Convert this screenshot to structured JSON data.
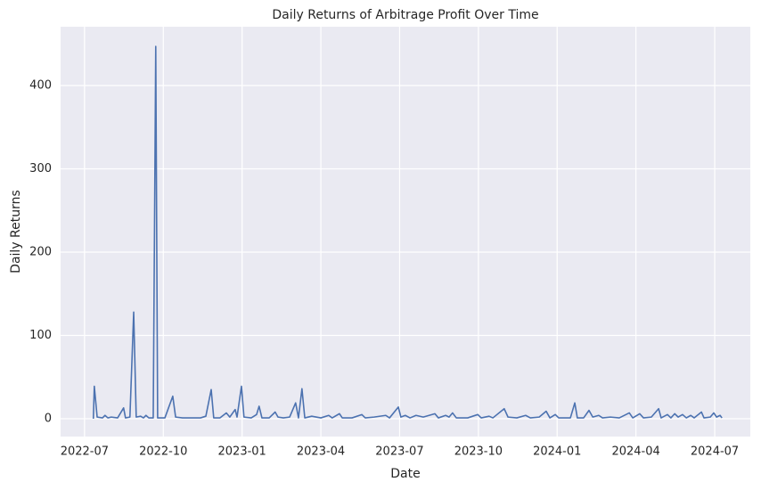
{
  "chart_data": {
    "type": "line",
    "title": "Daily Returns of Arbitrage Profit Over Time",
    "xlabel": "Date",
    "ylabel": "Daily Returns",
    "x": [
      2022.528,
      2022.531,
      2022.54,
      2022.557,
      2022.565,
      2022.574,
      2022.585,
      2022.605,
      2022.624,
      2022.63,
      2022.644,
      2022.656,
      2022.664,
      2022.678,
      2022.687,
      2022.695,
      2022.704,
      2022.718,
      2022.726,
      2022.732,
      2022.755,
      2022.78,
      2022.789,
      2022.811,
      2022.839,
      2022.868,
      2022.885,
      2022.902,
      2022.91,
      2022.93,
      2022.95,
      2022.961,
      2022.978,
      2022.984,
      2022.998,
      2023.006,
      2023.029,
      2023.046,
      2023.054,
      2023.063,
      2023.086,
      2023.105,
      2023.114,
      2023.131,
      2023.151,
      2023.17,
      2023.179,
      2023.19,
      2023.199,
      2023.221,
      2023.25,
      2023.275,
      2023.286,
      2023.309,
      2023.318,
      2023.349,
      2023.38,
      2023.391,
      2023.419,
      2023.456,
      2023.468,
      2023.496,
      2023.504,
      2023.518,
      2023.533,
      2023.552,
      2023.575,
      2023.612,
      2023.623,
      2023.646,
      2023.657,
      2023.668,
      2023.68,
      2023.716,
      2023.748,
      2023.759,
      2023.784,
      2023.796,
      2023.832,
      2023.844,
      2023.872,
      2023.9,
      2023.915,
      2023.943,
      2023.965,
      2023.977,
      2023.994,
      2024.005,
      2024.042,
      2024.056,
      2024.064,
      2024.084,
      2024.101,
      2024.113,
      2024.132,
      2024.144,
      2024.169,
      2024.197,
      2024.229,
      2024.24,
      2024.262,
      2024.274,
      2024.299,
      2024.322,
      2024.33,
      2024.35,
      2024.361,
      2024.373,
      2024.384,
      2024.398,
      2024.41,
      2024.424,
      2024.435,
      2024.458,
      2024.466,
      2024.486,
      2024.497,
      2024.506,
      2024.517,
      2024.523
    ],
    "series": [
      {
        "name": "Daily Returns",
        "color": "#4c72b0",
        "values": [
          0,
          39,
          2,
          1,
          4,
          1,
          2,
          1,
          13,
          1,
          2,
          128,
          2,
          3,
          1,
          4,
          1,
          1,
          447,
          1,
          1,
          27,
          2,
          1,
          1,
          1,
          3,
          35,
          1,
          1,
          7,
          2,
          11,
          2,
          39,
          2,
          1,
          5,
          15,
          1,
          1,
          8,
          2,
          1,
          2,
          19,
          1,
          36,
          1,
          3,
          1,
          4,
          1,
          6,
          1,
          1,
          5,
          1,
          2,
          4,
          1,
          14,
          2,
          4,
          1,
          4,
          2,
          6,
          1,
          4,
          2,
          7,
          1,
          1,
          5,
          1,
          3,
          1,
          12,
          2,
          1,
          4,
          1,
          2,
          9,
          1,
          5,
          1,
          1,
          19,
          1,
          1,
          10,
          2,
          4,
          1,
          2,
          1,
          7,
          1,
          6,
          1,
          2,
          12,
          1,
          5,
          1,
          6,
          2,
          5,
          1,
          4,
          1,
          8,
          1,
          2,
          7,
          2,
          4,
          1
        ]
      }
    ],
    "xlim": [
      2022.424,
      2024.613
    ],
    "xticks": [
      {
        "value": 2022.5,
        "label": "2022-07"
      },
      {
        "value": 2022.75,
        "label": "2022-10"
      },
      {
        "value": 2023.0,
        "label": "2023-01"
      },
      {
        "value": 2023.25,
        "label": "2023-04"
      },
      {
        "value": 2023.5,
        "label": "2023-07"
      },
      {
        "value": 2023.75,
        "label": "2023-10"
      },
      {
        "value": 2024.0,
        "label": "2024-01"
      },
      {
        "value": 2024.25,
        "label": "2024-04"
      },
      {
        "value": 2024.5,
        "label": "2024-07"
      }
    ],
    "ylim": [
      -21.4,
      470.6
    ],
    "yticks": [
      0,
      100,
      200,
      300,
      400
    ],
    "grid": true
  }
}
